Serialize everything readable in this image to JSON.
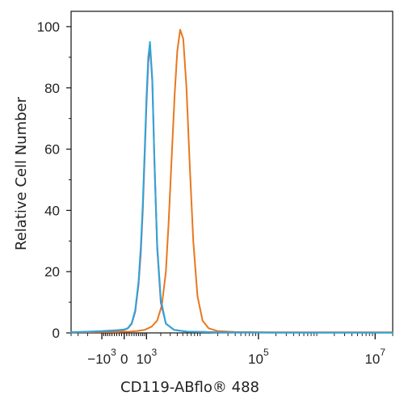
{
  "chart_data": {
    "type": "line",
    "title": "",
    "xlabel": "CD119-ABflo® 488",
    "ylabel": "Relative Cell Number",
    "x_scale": "biexponential",
    "x_ticks": [
      {
        "value": -1000,
        "base": "−10",
        "exp": "3"
      },
      {
        "value": 0,
        "base": "0",
        "exp": ""
      },
      {
        "value": 1000,
        "base": "10",
        "exp": "3"
      },
      {
        "value": 100000,
        "base": "10",
        "exp": "5"
      },
      {
        "value": 10000000,
        "base": "10",
        "exp": "7"
      }
    ],
    "y_ticks": [
      0,
      20,
      40,
      60,
      80,
      100
    ],
    "xlim": [
      -4000,
      20000000
    ],
    "ylim": [
      0,
      105
    ],
    "grid": false,
    "legend": "none",
    "series": [
      {
        "color": "#e8781e",
        "x": [
          -4000,
          -1000,
          -300,
          0,
          200,
          500,
          900,
          1300,
          1700,
          2100,
          2500,
          2800,
          3200,
          3600,
          4000,
          4500,
          5100,
          5800,
          6600,
          7600,
          9000,
          11000,
          14000,
          20000,
          40000,
          200000,
          2000000,
          20000000
        ],
        "y": [
          0.2,
          0.3,
          0.3,
          0.4,
          0.4,
          0.6,
          1,
          2,
          4,
          9,
          20,
          36,
          58,
          78,
          92,
          99,
          96,
          80,
          55,
          30,
          12,
          4,
          1.5,
          0.6,
          0.3,
          0.2,
          0.2,
          0.2
        ]
      },
      {
        "color": "#d0407a",
        "x": [
          -4000,
          -1000,
          -300,
          0,
          150,
          300,
          450,
          600,
          700,
          800,
          900,
          1000,
          1100,
          1200,
          1350,
          1500,
          1700,
          2000,
          2500,
          3500,
          6000,
          20000,
          200000,
          20000000
        ],
        "y": [
          0.2,
          0.5,
          0.8,
          1,
          1.5,
          3,
          7,
          16,
          26,
          40,
          58,
          75,
          88,
          94,
          82,
          55,
          28,
          10,
          3,
          1,
          0.4,
          0.2,
          0.1,
          0.1
        ]
      },
      {
        "color": "#2aa8d8",
        "x": [
          -4000,
          -1000,
          -300,
          0,
          150,
          300,
          450,
          600,
          700,
          800,
          900,
          1000,
          1100,
          1200,
          1350,
          1500,
          1700,
          2000,
          2500,
          3500,
          6000,
          20000,
          200000,
          20000000
        ],
        "y": [
          0.2,
          0.6,
          0.9,
          1.1,
          1.6,
          3.2,
          7.5,
          17,
          28,
          42,
          60,
          77,
          90,
          95,
          83,
          56,
          29,
          11,
          3,
          1,
          0.4,
          0.2,
          0.1,
          0.1
        ]
      }
    ]
  }
}
